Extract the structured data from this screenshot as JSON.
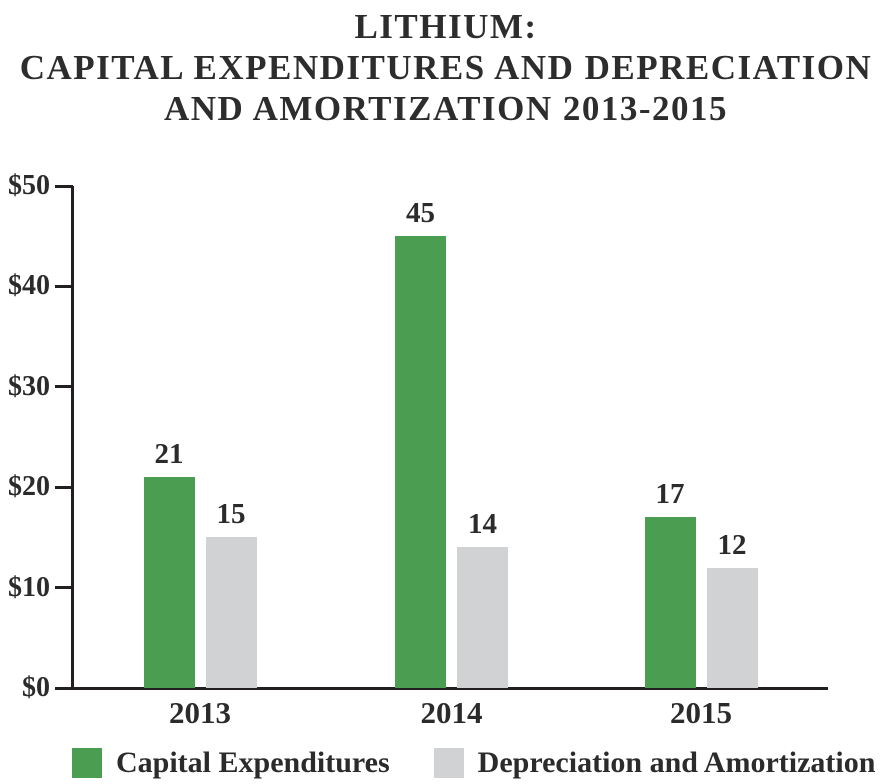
{
  "title": {
    "line1": "LITHIUM:",
    "line2": "CAPITAL EXPENDITURES AND DEPRECIATION",
    "line3": "AND AMORTIZATION 2013-2015"
  },
  "chart_data": {
    "type": "bar",
    "categories": [
      "2013",
      "2014",
      "2015"
    ],
    "series": [
      {
        "name": "Capital Expenditures",
        "color": "#4b9d51",
        "values": [
          21,
          45,
          17
        ]
      },
      {
        "name": "Depreciation and Amortization",
        "color": "#d1d2d3",
        "values": [
          15,
          14,
          12
        ]
      }
    ],
    "yticks": [
      {
        "value": 0,
        "label": "$0"
      },
      {
        "value": 10,
        "label": "$10"
      },
      {
        "value": 20,
        "label": "$20"
      },
      {
        "value": 30,
        "label": "$30"
      },
      {
        "value": 40,
        "label": "$40"
      },
      {
        "value": 50,
        "label": "$50"
      }
    ],
    "ylim": [
      0,
      50
    ],
    "grid": false,
    "legend_position": "bottom",
    "value_labels_shown": true,
    "axis_color": "#231f20",
    "text_color": "#2b2b2b"
  }
}
